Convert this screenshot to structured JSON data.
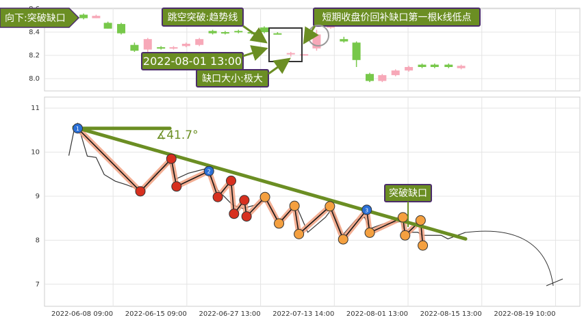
{
  "chart_data": [
    {
      "type": "candlestick",
      "x": [
        5.0,
        6.7,
        8.3,
        10.1,
        11.9,
        13.7,
        15.5,
        17.2,
        18.9,
        20.7,
        22.5,
        24.2,
        26.0,
        27.8,
        29.5,
        31.3,
        33.1,
        34.9,
        36.6,
        38.5,
        40.3,
        42.0,
        43.8,
        45.5,
        47.3,
        49.1,
        50.9,
        52.6,
        54.5,
        56.2
      ],
      "open": [
        8.55,
        8.52,
        8.48,
        8.47,
        8.29,
        8.25,
        8.27,
        8.26,
        8.28,
        8.29,
        8.41,
        8.4,
        8.41,
        8.4,
        8.44,
        8.39,
        8.21,
        8.2,
        8.26,
        8.44,
        8.34,
        8.31,
        8.04,
        7.98,
        8.03,
        8.07,
        8.12,
        8.12,
        8.12,
        8.09
      ],
      "high": [
        8.56,
        8.55,
        8.49,
        8.48,
        8.31,
        8.35,
        8.28,
        8.28,
        8.31,
        8.35,
        8.42,
        8.41,
        8.42,
        8.41,
        8.45,
        8.4,
        8.23,
        8.21,
        8.42,
        8.46,
        8.36,
        8.32,
        8.05,
        8.04,
        8.08,
        8.11,
        8.13,
        8.13,
        8.13,
        8.12
      ],
      "low": [
        8.51,
        8.52,
        8.43,
        8.38,
        8.23,
        8.23,
        8.25,
        8.25,
        8.27,
        8.28,
        8.38,
        8.38,
        8.39,
        8.38,
        8.39,
        8.38,
        8.19,
        8.2,
        8.24,
        8.43,
        8.31,
        8.1,
        7.97,
        7.97,
        8.02,
        8.06,
        8.09,
        8.09,
        8.09,
        8.08
      ],
      "close": [
        8.52,
        8.54,
        8.43,
        8.39,
        8.24,
        8.34,
        8.26,
        8.27,
        8.3,
        8.34,
        8.39,
        8.39,
        8.4,
        8.39,
        8.4,
        8.38,
        8.22,
        8.21,
        8.38,
        8.45,
        8.32,
        8.16,
        7.98,
        8.03,
        8.07,
        8.1,
        8.1,
        8.1,
        8.1,
        8.11
      ],
      "up_color": "#f7a8b8",
      "down_color": "#77c84a",
      "xlim": [
        -0.3,
        72.3
      ],
      "ylim": [
        7.9,
        8.6
      ],
      "yticks": [
        {
          "value": 8,
          "label": "8.0"
        },
        8.2,
        8.4,
        8.6
      ],
      "grid": true,
      "annotations": [
        "向下:突破缺口",
        "跳空突破:趋势线",
        "2022-08-01 13:00",
        "缺口大小:极大",
        "短期收盘价回补缺口第一根k线低点"
      ]
    },
    {
      "type": "line",
      "line": {
        "color": "#333333",
        "x": [
          3.0,
          3.7,
          4.2,
          5.5,
          6.7,
          7.8,
          9.3,
          10.8,
          12.2,
          12.8,
          14.6,
          16.7,
          17.4,
          19.2,
          21.5,
          23.2,
          25.2,
          26.6,
          28.9,
          29.7,
          31.5,
          33.8,
          35.4,
          37.8,
          38.7,
          40.1,
          41.9,
          43.1,
          43.8,
          45.6,
          48.0,
          48.6,
          50.3,
          51.0,
          53.5,
          54.4,
          56.8
        ],
        "values": [
          9.92,
          10.49,
          10.65,
          9.91,
          9.88,
          9.49,
          9.34,
          9.26,
          9.17,
          9.11,
          9.49,
          9.75,
          9.38,
          9.52,
          9.62,
          9.14,
          8.8,
          8.72,
          8.83,
          8.95,
          8.42,
          8.8,
          8.18,
          8.52,
          8.72,
          8.11,
          8.46,
          8.52,
          8.26,
          8.37,
          8.42,
          8.18,
          8.18,
          8.11,
          8.11,
          8.03,
          8.18
        ]
      },
      "pattern": {
        "color": "#f0a080",
        "x": [
          4.2,
          12.7,
          16.9,
          17.6,
          22.0,
          23.2,
          25.0,
          25.4,
          26.8,
          27.1,
          29.6,
          31.5,
          33.6,
          34.2,
          38.4,
          40.2,
          43.4,
          43.8,
          48.3,
          48.6,
          50.7,
          51.0
        ],
        "values": [
          10.54,
          9.11,
          9.85,
          9.22,
          9.57,
          8.98,
          9.35,
          8.6,
          8.91,
          8.54,
          8.98,
          8.38,
          8.78,
          8.14,
          8.77,
          8.02,
          8.69,
          8.17,
          8.52,
          8.11,
          8.45,
          7.88
        ],
        "point_colors": [
          "#2a6fd6",
          "#d7301f",
          "#d7301f",
          "#d7301f",
          "#2a6fd6",
          "#d7301f",
          "#d7301f",
          "#d7301f",
          "#d7301f",
          "#d7301f",
          "#f4a040",
          "#f4a040",
          "#f4a040",
          "#f4a040",
          "#f4a040",
          "#f4a040",
          "#2a6fd6",
          "#f4a040",
          "#f4a040",
          "#f4a040",
          "#f4a040",
          "#f4a040"
        ],
        "point_labels": [
          "1",
          null,
          null,
          null,
          "2",
          null,
          null,
          null,
          null,
          null,
          null,
          null,
          null,
          null,
          null,
          null,
          "3",
          null,
          null,
          null,
          null,
          null
        ]
      },
      "trendline": {
        "color": "#6b8e23",
        "x": [
          3.7,
          56.8
        ],
        "values": [
          10.57,
          8.03
        ]
      },
      "hline": {
        "color": "#6b8e23",
        "x": [
          3.7,
          16.7
        ],
        "values": [
          10.54,
          10.54
        ]
      },
      "xlim": [
        -0.3,
        72.3
      ],
      "ylim": [
        6.5,
        11.25
      ],
      "yticks": [
        7,
        8,
        9,
        10,
        11
      ],
      "xticks": [
        {
          "value": 9,
          "label": "2022-06-08 09:00"
        },
        {
          "value": 19,
          "label": "2022-06-15 09:00"
        },
        {
          "value": 29,
          "label": "2022-06-27 13:00"
        },
        {
          "value": 39,
          "label": "2022-07-13 14:00"
        },
        {
          "value": 49,
          "label": "2022-08-01 13:00"
        },
        {
          "value": 59,
          "label": "2022-08-15 13:00"
        },
        {
          "value": 69,
          "label": "2022-08-19 10:00"
        }
      ],
      "grid": true,
      "annotations": [
        "∡41.7°",
        "突破缺口"
      ]
    }
  ]
}
